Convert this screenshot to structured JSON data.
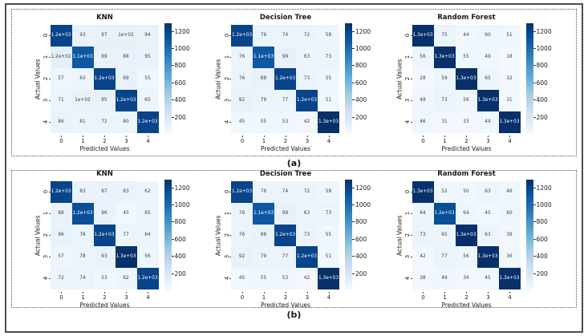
{
  "figure": {
    "panel_a_label": "(a)",
    "panel_b_label": "(b)"
  },
  "colors": {
    "frame_border": "#4d4d4d",
    "panel_border": "#555555",
    "cmap_low": "#f7fbff",
    "cmap_high": "#08306b",
    "cell_text_dark": "#3d3d3d",
    "cell_text_light": "#ffffff"
  },
  "colorbar": {
    "vmin": 0,
    "vmax": 1300,
    "ticks": [
      200,
      400,
      600,
      800,
      1000,
      1200
    ]
  },
  "chart_data": [
    {
      "type": "heatmap",
      "panel": "a",
      "title": "KNN",
      "xlabel": "Predicted Values",
      "ylabel": "Actual Values",
      "x_ticks": [
        "0",
        "1",
        "2",
        "3",
        "4"
      ],
      "y_ticks": [
        "0",
        "1",
        "2",
        "3",
        "4"
      ],
      "colormap": "Blues",
      "vmin": 0,
      "vmax": 1300,
      "cell_labels": [
        [
          "1.2e+03",
          "93",
          "97",
          "1e+02",
          "94"
        ],
        [
          "1.2e+02",
          "1.1e+03",
          "89",
          "88",
          "95"
        ],
        [
          "57",
          "63",
          "1.2e+03",
          "99",
          "55"
        ],
        [
          "71",
          "1e+02",
          "95",
          "1.2e+03",
          "65"
        ],
        [
          "86",
          "81",
          "72",
          "80",
          "1.2e+03"
        ]
      ],
      "values": [
        [
          1200,
          93,
          97,
          100,
          94
        ],
        [
          120,
          1100,
          89,
          88,
          95
        ],
        [
          57,
          63,
          1200,
          99,
          55
        ],
        [
          71,
          100,
          95,
          1200,
          65
        ],
        [
          86,
          81,
          72,
          80,
          1200
        ]
      ]
    },
    {
      "type": "heatmap",
      "panel": "a",
      "title": "Decision Tree",
      "xlabel": "Predicted Values",
      "ylabel": "Actual Values",
      "x_ticks": [
        "0",
        "1",
        "2",
        "3",
        "4"
      ],
      "y_ticks": [
        "0",
        "1",
        "2",
        "3",
        "4"
      ],
      "colormap": "Blues",
      "vmin": 0,
      "vmax": 1300,
      "cell_labels": [
        [
          "1.2e+03",
          "76",
          "74",
          "72",
          "58"
        ],
        [
          "76",
          "1.1e+03",
          "99",
          "63",
          "73"
        ],
        [
          "76",
          "88",
          "1.2e+03",
          "73",
          "55"
        ],
        [
          "92",
          "79",
          "77",
          "1.2e+03",
          "51"
        ],
        [
          "45",
          "55",
          "53",
          "42",
          "1.3e+03"
        ]
      ],
      "values": [
        [
          1200,
          76,
          74,
          72,
          58
        ],
        [
          76,
          1100,
          99,
          63,
          73
        ],
        [
          76,
          88,
          1200,
          73,
          55
        ],
        [
          92,
          79,
          77,
          1200,
          51
        ],
        [
          45,
          55,
          53,
          42,
          1300
        ]
      ]
    },
    {
      "type": "heatmap",
      "panel": "a",
      "title": "Random Forest",
      "xlabel": "Predicted Values",
      "ylabel": "Actual Values",
      "x_ticks": [
        "0",
        "1",
        "2",
        "3",
        "4"
      ],
      "y_ticks": [
        "0",
        "1",
        "2",
        "3",
        "4"
      ],
      "colormap": "Blues",
      "vmin": 0,
      "vmax": 1300,
      "cell_labels": [
        [
          "1.3e+03",
          "75",
          "44",
          "60",
          "51"
        ],
        [
          "56",
          "1.3e+03",
          "55",
          "49",
          "18"
        ],
        [
          "28",
          "59",
          "1.3e+03",
          "65",
          "32"
        ],
        [
          "48",
          "73",
          "56",
          "1.3e+03",
          "31"
        ],
        [
          "46",
          "31",
          "33",
          "44",
          "1.3e+03"
        ]
      ],
      "values": [
        [
          1300,
          75,
          44,
          60,
          51
        ],
        [
          56,
          1300,
          55,
          49,
          18
        ],
        [
          28,
          59,
          1300,
          65,
          32
        ],
        [
          48,
          73,
          56,
          1300,
          31
        ],
        [
          46,
          31,
          33,
          44,
          1300
        ]
      ]
    },
    {
      "type": "heatmap",
      "panel": "b",
      "title": "KNN",
      "xlabel": "Predicted Values",
      "ylabel": "Actual Values",
      "x_ticks": [
        "0",
        "1",
        "2",
        "3",
        "4"
      ],
      "y_ticks": [
        "0",
        "1",
        "2",
        "3",
        "4"
      ],
      "colormap": "Blues",
      "vmin": 0,
      "vmax": 1300,
      "cell_labels": [
        [
          "1.2e+03",
          "83",
          "87",
          "83",
          "62"
        ],
        [
          "88",
          "1.2e+03",
          "96",
          "45",
          "65"
        ],
        [
          "96",
          "76",
          "1.2e+03",
          "77",
          "64"
        ],
        [
          "57",
          "78",
          "93",
          "1.3e+03",
          "56"
        ],
        [
          "72",
          "74",
          "53",
          "62",
          "1.2e+03"
        ]
      ],
      "values": [
        [
          1200,
          83,
          87,
          83,
          62
        ],
        [
          88,
          1150,
          96,
          45,
          65
        ],
        [
          96,
          76,
          1200,
          77,
          64
        ],
        [
          57,
          78,
          93,
          1300,
          56
        ],
        [
          72,
          74,
          53,
          62,
          1200
        ]
      ]
    },
    {
      "type": "heatmap",
      "panel": "b",
      "title": "Decision Tree",
      "xlabel": "Predicted Values",
      "ylabel": "Actual Values",
      "x_ticks": [
        "0",
        "1",
        "2",
        "3",
        "4"
      ],
      "y_ticks": [
        "0",
        "1",
        "2",
        "3",
        "4"
      ],
      "colormap": "Blues",
      "vmin": 0,
      "vmax": 1300,
      "cell_labels": [
        [
          "1.2e+03",
          "76",
          "74",
          "72",
          "58"
        ],
        [
          "76",
          "1.1e+03",
          "99",
          "63",
          "73"
        ],
        [
          "76",
          "88",
          "1.2e+03",
          "73",
          "55"
        ],
        [
          "92",
          "79",
          "77",
          "1.2e+03",
          "51"
        ],
        [
          "45",
          "55",
          "53",
          "42",
          "1.3e+03"
        ]
      ],
      "values": [
        [
          1200,
          76,
          74,
          72,
          58
        ],
        [
          76,
          1100,
          99,
          63,
          73
        ],
        [
          76,
          88,
          1200,
          73,
          55
        ],
        [
          92,
          79,
          77,
          1200,
          51
        ],
        [
          45,
          55,
          53,
          42,
          1300
        ]
      ]
    },
    {
      "type": "heatmap",
      "panel": "b",
      "title": "Random Forest",
      "xlabel": "Predicted Values",
      "ylabel": "Actual Values",
      "x_ticks": [
        "0",
        "1",
        "2",
        "3",
        "4"
      ],
      "y_ticks": [
        "0",
        "1",
        "2",
        "3",
        "4"
      ],
      "colormap": "Blues",
      "vmin": 0,
      "vmax": 1300,
      "cell_labels": [
        [
          "1.3e+03",
          "52",
          "50",
          "63",
          "46"
        ],
        [
          "64",
          "1.2e+03",
          "64",
          "45",
          "60"
        ],
        [
          "73",
          "65",
          "1.3e+03",
          "63",
          "39"
        ],
        [
          "42",
          "77",
          "56",
          "1.3e+03",
          "36"
        ],
        [
          "38",
          "49",
          "34",
          "45",
          "1.3e+03"
        ]
      ],
      "values": [
        [
          1300,
          52,
          50,
          63,
          46
        ],
        [
          64,
          1150,
          64,
          45,
          60
        ],
        [
          73,
          65,
          1300,
          63,
          39
        ],
        [
          42,
          77,
          56,
          1300,
          36
        ],
        [
          38,
          49,
          34,
          45,
          1300
        ]
      ]
    }
  ]
}
